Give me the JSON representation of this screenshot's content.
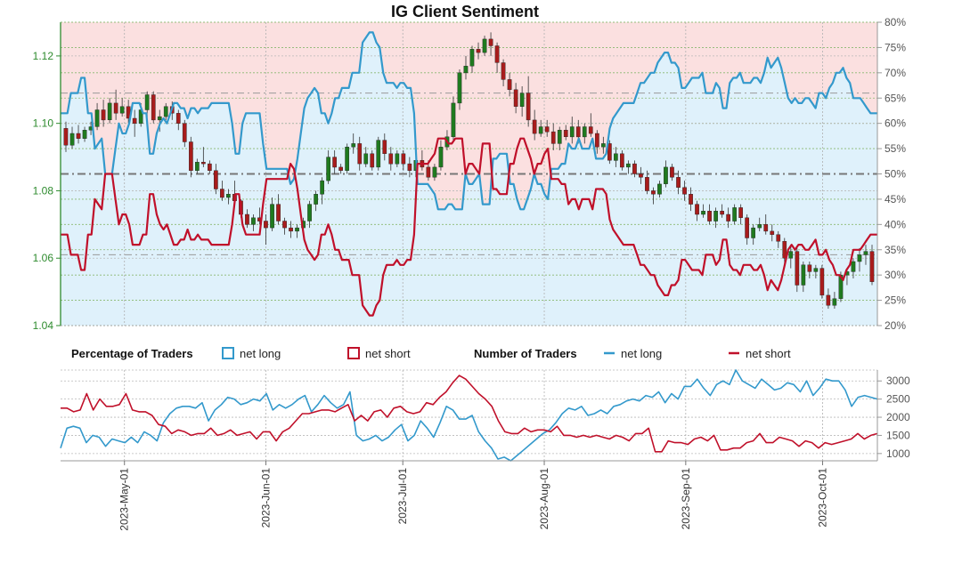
{
  "chart_data": {
    "type": "candlestick+area+line",
    "title": "IG Client Sentiment",
    "colors": {
      "net_long": "#3399cc",
      "net_short": "#c0102a",
      "long_fill": "#dff1fb",
      "short_fill": "#fbe0e0",
      "bull_candle": "#1f7a1f",
      "bear_candle": "#a81c1c",
      "grid": "#aaaaaa",
      "price_axis": "#2e8b2e"
    },
    "dates": [
      "2023-04-17",
      "2023-10-13"
    ],
    "x_ticks": [
      "2023-May-01",
      "2023-Jun-01",
      "2023-Jul-01",
      "2023-Aug-01",
      "2023-Sep-01",
      "2023-Oct-01"
    ],
    "price_axis": {
      "ticks": [
        "1.04",
        "1.06",
        "1.08",
        "1.10",
        "1.12"
      ],
      "ylim": [
        1.04,
        1.13
      ]
    },
    "percent_axis": {
      "ticks": [
        "20%",
        "25%",
        "30%",
        "35%",
        "40%",
        "45%",
        "50%",
        "55%",
        "60%",
        "65%",
        "70%",
        "75%",
        "80%"
      ],
      "ylim": [
        20,
        80
      ]
    },
    "count_axis": {
      "ticks": [
        "1000",
        "1500",
        "2000",
        "2500",
        "3000"
      ],
      "ylim": [
        800,
        3300
      ]
    },
    "percent_net_long": [
      62,
      62,
      62,
      66,
      66,
      66,
      69,
      69,
      62,
      62,
      55,
      56,
      57,
      50,
      50,
      50,
      55,
      60,
      58,
      58,
      60,
      64,
      64,
      64,
      62,
      62,
      54,
      54,
      58,
      60,
      61,
      60,
      62,
      64,
      64,
      63,
      63,
      61,
      63,
      63,
      62,
      63,
      63,
      63,
      64,
      64,
      64,
      64,
      64,
      64,
      60,
      54,
      54,
      60,
      62,
      62,
      62,
      62,
      62,
      56,
      51,
      51,
      51,
      51,
      51,
      51,
      51,
      48,
      49,
      53,
      58,
      63,
      65,
      66,
      67,
      66,
      62,
      62,
      60,
      62,
      65,
      65,
      67,
      67,
      67,
      70,
      70,
      70,
      76,
      77,
      78,
      78,
      76,
      75,
      70,
      68,
      68,
      68,
      67,
      68,
      68,
      67,
      67,
      62,
      48,
      48,
      48,
      48,
      47,
      46,
      43,
      43,
      43,
      44,
      44,
      43,
      43,
      43,
      50,
      48,
      48,
      49,
      50,
      44,
      44,
      44,
      53,
      53,
      54,
      54,
      54,
      48,
      48,
      45,
      43,
      43,
      45,
      47,
      50,
      48,
      48,
      46,
      45,
      51,
      51,
      51,
      52,
      52,
      56,
      55,
      55,
      57,
      55,
      55,
      55,
      57,
      53,
      53,
      53,
      54,
      59,
      61,
      62,
      63,
      64,
      64,
      64,
      64,
      66,
      68,
      68,
      69,
      70,
      70,
      72,
      73,
      74,
      74,
      72,
      72,
      71,
      67,
      67,
      68,
      69,
      69,
      69,
      70,
      66,
      66,
      66,
      68,
      67,
      63,
      63,
      68,
      69,
      69,
      70,
      68,
      68,
      68,
      69,
      69,
      68,
      70,
      73,
      71,
      72,
      73,
      71,
      68,
      65,
      64,
      65,
      64,
      64,
      65,
      65,
      64,
      63,
      66,
      66,
      65,
      67,
      68,
      70,
      70,
      71,
      69,
      68,
      65,
      65,
      65,
      64,
      63,
      62,
      62,
      62
    ],
    "percent_net_short": [
      38,
      38,
      38,
      34,
      34,
      34,
      31,
      31,
      38,
      38,
      45,
      44,
      43,
      50,
      50,
      50,
      45,
      40,
      42,
      42,
      40,
      36,
      36,
      36,
      38,
      38,
      46,
      46,
      42,
      40,
      39,
      40,
      38,
      36,
      36,
      37,
      37,
      39,
      37,
      37,
      38,
      37,
      37,
      37,
      36,
      36,
      36,
      36,
      36,
      36,
      40,
      46,
      46,
      40,
      38,
      38,
      38,
      38,
      38,
      44,
      49,
      49,
      49,
      49,
      49,
      49,
      49,
      52,
      51,
      47,
      42,
      37,
      35,
      34,
      33,
      34,
      38,
      38,
      40,
      38,
      35,
      35,
      33,
      33,
      33,
      30,
      30,
      30,
      24,
      23,
      22,
      22,
      24,
      25,
      30,
      32,
      32,
      32,
      33,
      32,
      32,
      33,
      33,
      38,
      52,
      52,
      52,
      52,
      53,
      54,
      57,
      57,
      57,
      56,
      56,
      57,
      57,
      57,
      50,
      52,
      52,
      51,
      50,
      56,
      56,
      56,
      47,
      47,
      46,
      46,
      46,
      52,
      52,
      55,
      57,
      57,
      55,
      53,
      50,
      52,
      52,
      54,
      55,
      49,
      49,
      49,
      48,
      48,
      44,
      45,
      45,
      43,
      45,
      45,
      45,
      43,
      47,
      47,
      47,
      46,
      41,
      39,
      38,
      37,
      36,
      36,
      36,
      36,
      34,
      32,
      32,
      31,
      30,
      30,
      28,
      27,
      26,
      26,
      28,
      28,
      29,
      33,
      33,
      32,
      31,
      31,
      31,
      30,
      34,
      34,
      34,
      32,
      33,
      37,
      37,
      32,
      31,
      31,
      30,
      32,
      32,
      32,
      31,
      31,
      32,
      30,
      27,
      29,
      28,
      27,
      29,
      32,
      35,
      36,
      35,
      36,
      36,
      35,
      35,
      36,
      37,
      34,
      34,
      35,
      33,
      32,
      30,
      30,
      29,
      31,
      32,
      35,
      35,
      35,
      36,
      37,
      38,
      38,
      38
    ],
    "count_net_long": [
      1150,
      1700,
      1750,
      1700,
      1300,
      1500,
      1450,
      1200,
      1400,
      1350,
      1300,
      1450,
      1300,
      1600,
      1500,
      1350,
      1850,
      2100,
      2250,
      2300,
      2300,
      2250,
      2400,
      1900,
      2200,
      2350,
      2550,
      2500,
      2350,
      2400,
      2500,
      2450,
      2650,
      2200,
      2350,
      2250,
      2350,
      2500,
      2600,
      2150,
      2350,
      2600,
      2400,
      2250,
      2350,
      2700,
      1500,
      1350,
      1400,
      1500,
      1350,
      1450,
      1650,
      1800,
      1350,
      1500,
      1900,
      1700,
      1450,
      1850,
      2300,
      2200,
      1950,
      1950,
      2050,
      1600,
      1350,
      1150,
      850,
      900,
      800,
      950,
      1100,
      1250,
      1400,
      1550,
      1650,
      1850,
      2100,
      2250,
      2200,
      2300,
      2050,
      2100,
      2200,
      2100,
      2300,
      2350,
      2450,
      2500,
      2450,
      2600,
      2550,
      2700,
      2400,
      2650,
      2500,
      2850,
      2850,
      3050,
      2800,
      2600,
      2900,
      3000,
      2900,
      3300,
      3000,
      2900,
      2800,
      3050,
      2900,
      2750,
      2800,
      2950,
      2900,
      2700,
      3000,
      2600,
      2800,
      3050,
      3000,
      3000,
      2750,
      2300,
      2550,
      2600,
      2550,
      2500
    ],
    "count_net_short": [
      2250,
      2250,
      2150,
      2200,
      2650,
      2200,
      2500,
      2300,
      2300,
      2350,
      2650,
      2200,
      2150,
      2150,
      2050,
      1800,
      1750,
      1550,
      1650,
      1600,
      1500,
      1550,
      1550,
      1700,
      1500,
      1550,
      1650,
      1500,
      1550,
      1600,
      1400,
      1600,
      1600,
      1350,
      1600,
      1700,
      1900,
      2100,
      2100,
      2150,
      2200,
      2200,
      2150,
      2250,
      2350,
      1900,
      2050,
      1900,
      2150,
      2200,
      2000,
      2250,
      2300,
      2150,
      2100,
      2150,
      2400,
      2350,
      2550,
      2700,
      2950,
      3150,
      3050,
      2850,
      2650,
      2500,
      2300,
      1900,
      1600,
      1550,
      1550,
      1700,
      1600,
      1650,
      1650,
      1600,
      1750,
      1500,
      1500,
      1450,
      1500,
      1450,
      1500,
      1450,
      1400,
      1500,
      1450,
      1350,
      1550,
      1550,
      1700,
      1050,
      1050,
      1350,
      1300,
      1300,
      1250,
      1400,
      1450,
      1350,
      1500,
      1100,
      1100,
      1150,
      1150,
      1300,
      1350,
      1550,
      1300,
      1300,
      1450,
      1400,
      1350,
      1200,
      1350,
      1300,
      1150,
      1300,
      1250,
      1300,
      1350,
      1400,
      1550,
      1400,
      1500,
      1550
    ],
    "price_ohlc": [
      [
        1.0985,
        1.1005,
        1.0915,
        1.0935
      ],
      [
        1.0935,
        1.099,
        1.0925,
        1.097
      ],
      [
        1.097,
        1.0995,
        1.094,
        1.0955
      ],
      [
        1.0955,
        1.099,
        1.0945,
        1.098
      ],
      [
        1.098,
        1.1005,
        1.0965,
        1.099
      ],
      [
        1.099,
        1.106,
        1.098,
        1.104
      ],
      [
        1.104,
        1.107,
        1.099,
        1.101
      ],
      [
        1.101,
        1.1075,
        1.1,
        1.106
      ],
      [
        1.106,
        1.11,
        1.101,
        1.103
      ],
      [
        1.103,
        1.1075,
        1.102,
        1.105
      ],
      [
        1.105,
        1.107,
        1.1,
        1.1015
      ],
      [
        1.1015,
        1.104,
        1.096,
        1.1
      ],
      [
        1.1,
        1.106,
        1.099,
        1.104
      ],
      [
        1.104,
        1.1095,
        1.102,
        1.1085
      ],
      [
        1.1085,
        1.1095,
        1.1,
        1.101
      ],
      [
        1.101,
        1.104,
        1.0975,
        1.102
      ],
      [
        1.102,
        1.106,
        1.101,
        1.105
      ],
      [
        1.105,
        1.1065,
        1.101,
        1.103
      ],
      [
        1.103,
        1.104,
        1.098,
        1.1
      ],
      [
        1.1,
        1.101,
        1.093,
        1.0945
      ],
      [
        1.0945,
        1.096,
        1.084,
        1.086
      ],
      [
        1.086,
        1.0895,
        1.085,
        1.0885
      ],
      [
        1.0885,
        1.093,
        1.087,
        1.088
      ],
      [
        1.088,
        1.089,
        1.085,
        1.086
      ],
      [
        1.086,
        1.088,
        1.079,
        1.0805
      ],
      [
        1.0805,
        1.083,
        1.077,
        1.078
      ],
      [
        1.078,
        1.0805,
        1.076,
        1.079
      ],
      [
        1.079,
        1.083,
        1.076,
        1.077
      ],
      [
        1.077,
        1.0775,
        1.072,
        1.073
      ],
      [
        1.073,
        1.0745,
        1.069,
        1.07
      ],
      [
        1.07,
        1.073,
        1.068,
        1.072
      ],
      [
        1.072,
        1.075,
        1.07,
        1.071
      ],
      [
        1.071,
        1.073,
        1.064,
        1.069
      ],
      [
        1.069,
        1.078,
        1.068,
        1.076
      ],
      [
        1.076,
        1.079,
        1.07,
        1.071
      ],
      [
        1.071,
        1.072,
        1.067,
        1.069
      ],
      [
        1.069,
        1.071,
        1.066,
        1.068
      ],
      [
        1.068,
        1.07,
        1.066,
        1.069
      ],
      [
        1.069,
        1.072,
        1.067,
        1.071
      ],
      [
        1.071,
        1.077,
        1.069,
        1.076
      ],
      [
        1.076,
        1.08,
        1.074,
        1.079
      ],
      [
        1.079,
        1.084,
        1.076,
        1.083
      ],
      [
        1.083,
        1.092,
        1.082,
        1.09
      ],
      [
        1.09,
        1.092,
        1.085,
        1.087
      ],
      [
        1.087,
        1.088,
        1.085,
        1.086
      ],
      [
        1.086,
        1.094,
        1.085,
        1.093
      ],
      [
        1.093,
        1.097,
        1.091,
        1.094
      ],
      [
        1.094,
        1.096,
        1.086,
        1.088
      ],
      [
        1.088,
        1.093,
        1.087,
        1.091
      ],
      [
        1.091,
        1.092,
        1.086,
        1.087
      ],
      [
        1.087,
        1.096,
        1.086,
        1.095
      ],
      [
        1.095,
        1.097,
        1.089,
        1.091
      ],
      [
        1.091,
        1.093,
        1.086,
        1.088
      ],
      [
        1.088,
        1.092,
        1.087,
        1.091
      ],
      [
        1.091,
        1.092,
        1.086,
        1.088
      ],
      [
        1.088,
        1.09,
        1.084,
        1.086
      ],
      [
        1.086,
        1.09,
        1.084,
        1.089
      ],
      [
        1.089,
        1.092,
        1.086,
        1.087
      ],
      [
        1.087,
        1.089,
        1.083,
        1.084
      ],
      [
        1.084,
        1.088,
        1.083,
        1.087
      ],
      [
        1.087,
        1.095,
        1.086,
        1.093
      ],
      [
        1.093,
        1.098,
        1.092,
        1.096
      ],
      [
        1.096,
        1.108,
        1.095,
        1.106
      ],
      [
        1.106,
        1.116,
        1.104,
        1.115
      ],
      [
        1.115,
        1.12,
        1.113,
        1.117
      ],
      [
        1.117,
        1.123,
        1.115,
        1.122
      ],
      [
        1.122,
        1.124,
        1.119,
        1.121
      ],
      [
        1.121,
        1.126,
        1.12,
        1.125
      ],
      [
        1.125,
        1.127,
        1.12,
        1.123
      ],
      [
        1.123,
        1.124,
        1.115,
        1.118
      ],
      [
        1.118,
        1.119,
        1.111,
        1.113
      ],
      [
        1.113,
        1.115,
        1.108,
        1.11
      ],
      [
        1.11,
        1.112,
        1.103,
        1.105
      ],
      [
        1.105,
        1.111,
        1.102,
        1.109
      ],
      [
        1.109,
        1.114,
        1.099,
        1.101
      ],
      [
        1.101,
        1.104,
        1.095,
        1.097
      ],
      [
        1.097,
        1.101,
        1.096,
        1.099
      ],
      [
        1.099,
        1.101,
        1.096,
        1.0975
      ],
      [
        1.0975,
        1.1,
        1.092,
        1.094
      ],
      [
        1.094,
        1.099,
        1.092,
        1.098
      ],
      [
        1.098,
        1.0995,
        1.095,
        1.096
      ],
      [
        1.096,
        1.102,
        1.094,
        1.099
      ],
      [
        1.099,
        1.101,
        1.094,
        1.096
      ],
      [
        1.096,
        1.1,
        1.094,
        1.099
      ],
      [
        1.099,
        1.103,
        1.096,
        1.097
      ],
      [
        1.097,
        1.098,
        1.091,
        1.093
      ],
      [
        1.093,
        1.096,
        1.091,
        1.094
      ],
      [
        1.094,
        1.095,
        1.088,
        1.089
      ],
      [
        1.089,
        1.093,
        1.087,
        1.091
      ],
      [
        1.091,
        1.092,
        1.086,
        1.087
      ],
      [
        1.087,
        1.089,
        1.085,
        1.088
      ],
      [
        1.088,
        1.089,
        1.084,
        1.085
      ],
      [
        1.085,
        1.087,
        1.082,
        1.084
      ],
      [
        1.084,
        1.086,
        1.079,
        1.08
      ],
      [
        1.08,
        1.081,
        1.076,
        1.079
      ],
      [
        1.079,
        1.083,
        1.078,
        1.082
      ],
      [
        1.082,
        1.089,
        1.081,
        1.087
      ],
      [
        1.087,
        1.088,
        1.083,
        1.084
      ],
      [
        1.084,
        1.086,
        1.079,
        1.081
      ],
      [
        1.081,
        1.083,
        1.077,
        1.079
      ],
      [
        1.079,
        1.081,
        1.074,
        1.076
      ],
      [
        1.076,
        1.077,
        1.071,
        1.073
      ],
      [
        1.073,
        1.076,
        1.072,
        1.074
      ],
      [
        1.074,
        1.076,
        1.07,
        1.071
      ],
      [
        1.071,
        1.075,
        1.069,
        1.074
      ],
      [
        1.074,
        1.076,
        1.072,
        1.073
      ],
      [
        1.073,
        1.075,
        1.069,
        1.071
      ],
      [
        1.071,
        1.076,
        1.07,
        1.075
      ],
      [
        1.075,
        1.076,
        1.07,
        1.072
      ],
      [
        1.072,
        1.073,
        1.064,
        1.066
      ],
      [
        1.066,
        1.07,
        1.064,
        1.069
      ],
      [
        1.069,
        1.072,
        1.068,
        1.07
      ],
      [
        1.07,
        1.073,
        1.067,
        1.068
      ],
      [
        1.068,
        1.07,
        1.065,
        1.067
      ],
      [
        1.067,
        1.068,
        1.063,
        1.065
      ],
      [
        1.065,
        1.066,
        1.058,
        1.06
      ],
      [
        1.06,
        1.064,
        1.057,
        1.062
      ],
      [
        1.062,
        1.063,
        1.05,
        1.052
      ],
      [
        1.052,
        1.059,
        1.05,
        1.058
      ],
      [
        1.058,
        1.059,
        1.054,
        1.056
      ],
      [
        1.056,
        1.058,
        1.054,
        1.057
      ],
      [
        1.057,
        1.058,
        1.048,
        1.049
      ],
      [
        1.049,
        1.051,
        1.045,
        1.046
      ],
      [
        1.046,
        1.05,
        1.045,
        1.048
      ],
      [
        1.048,
        1.056,
        1.047,
        1.055
      ],
      [
        1.055,
        1.057,
        1.052,
        1.056
      ],
      [
        1.056,
        1.06,
        1.054,
        1.059
      ],
      [
        1.059,
        1.063,
        1.056,
        1.061
      ],
      [
        1.061,
        1.064,
        1.058,
        1.062
      ],
      [
        1.062,
        1.064,
        1.052,
        1.053
      ]
    ]
  },
  "legend": {
    "percentage_title": "Percentage of Traders",
    "pct_long": "net long",
    "pct_short": "net short",
    "number_title": "Number of Traders",
    "num_long": "net long",
    "num_short": "net short"
  }
}
